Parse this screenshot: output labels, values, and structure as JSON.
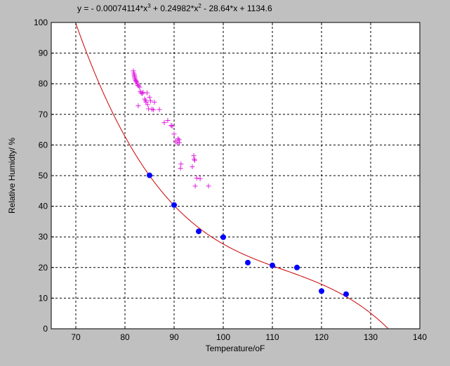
{
  "chart_data": {
    "type": "scatter",
    "title_parts": [
      "y = - 0.00074114*x",
      "3",
      " + 0.24982*x",
      "2",
      " - 28.64*x + 1134.6"
    ],
    "xlabel": "Temperature/oF",
    "ylabel": "Relative Humidty/ %",
    "xlim": [
      65,
      140
    ],
    "ylim": [
      0,
      100
    ],
    "xticks": [
      70,
      80,
      90,
      100,
      110,
      120,
      130,
      140
    ],
    "yticks": [
      0,
      10,
      20,
      30,
      40,
      50,
      60,
      70,
      80,
      90,
      100
    ],
    "grid": true,
    "colors": {
      "background": "#c0c0c0",
      "axes": "#ffffff",
      "fit": "#cc0000",
      "measured": "#0000ff",
      "scatter": "#e020e0"
    },
    "series": [
      {
        "marker": "plus",
        "x": [
          81.7,
          81.8,
          81.9,
          81.9,
          82.0,
          82.0,
          82.1,
          82.2,
          82.3,
          82.4,
          82.5,
          82.6,
          82.7,
          82.8,
          83.0,
          83.1,
          83.3,
          83.5,
          83.7,
          84.0,
          84.2,
          84.3,
          84.5,
          84.6,
          84.8,
          85.0,
          85.2,
          85.5,
          85.8,
          86.0,
          87.0,
          88.0,
          88.7,
          89.4,
          89.6,
          90.0,
          90.3,
          90.6,
          90.8,
          91.0,
          91.1,
          91.3,
          91.4,
          93.7,
          94.0,
          94.1,
          94.2,
          94.3,
          94.6,
          95.3,
          97.0
        ],
        "y": [
          84.2,
          83.5,
          83.0,
          82.6,
          82.2,
          81.8,
          81.3,
          81.0,
          80.8,
          80.5,
          80.0,
          79.5,
          72.8,
          79.3,
          78.9,
          77.5,
          77.0,
          76.8,
          77.2,
          75.0,
          74.5,
          74.0,
          77.0,
          73.2,
          71.8,
          75.6,
          74.4,
          71.7,
          71.5,
          74.0,
          71.6,
          67.3,
          68.0,
          66.4,
          66.1,
          63.6,
          61.3,
          60.6,
          62.0,
          61.7,
          60.8,
          52.4,
          53.8,
          52.9,
          56.5,
          55.4,
          55.0,
          46.6,
          49.2,
          49.0,
          46.6
        ]
      },
      {
        "marker": "dot",
        "x": [
          85,
          90,
          95,
          100,
          105,
          110,
          115,
          120,
          125
        ],
        "y": [
          50.1,
          40.4,
          31.8,
          29.9,
          21.6,
          20.7,
          20.0,
          12.3,
          11.3
        ]
      },
      {
        "marker": "line",
        "coefficients": [
          -0.00074114,
          0.24982,
          -28.64,
          1134.6
        ],
        "x_range": [
          65,
          140
        ]
      }
    ]
  }
}
